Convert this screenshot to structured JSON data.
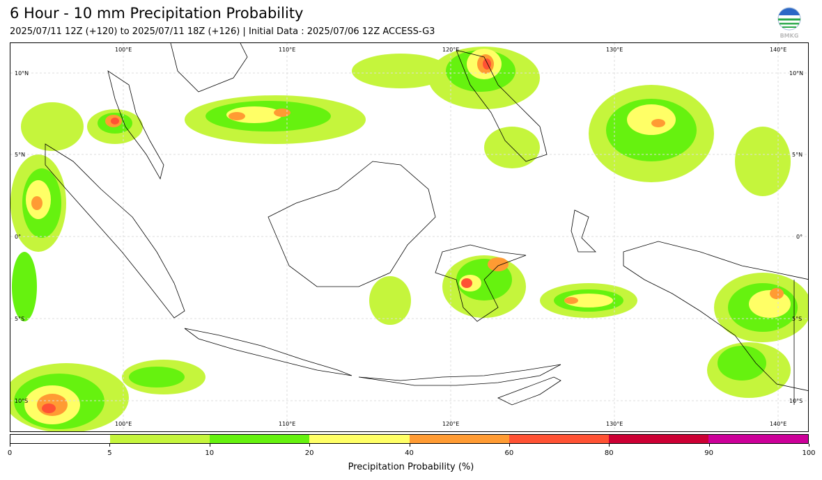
{
  "header": {
    "title": "6 Hour - 10 mm Precipitation Probability",
    "subtitle": "2025/07/11 12Z (+120) to 2025/07/11 18Z (+126) | Initial Data : 2025/07/06 12Z ACCESS-G3"
  },
  "logo": {
    "icon": "bmkg-logo",
    "text": "BMKG"
  },
  "map": {
    "lon_labels_top": [
      "100°E",
      "110°E",
      "120°E",
      "130°E",
      "140°E"
    ],
    "lon_labels_bottom": [
      "100°E",
      "110°E",
      "120°E",
      "130°E",
      "140°E"
    ],
    "lat_labels_left": [
      "10°N",
      "5°N",
      "0°",
      "5°S",
      "10°S"
    ],
    "lat_labels_right": [
      "10°N",
      "5°N",
      "0°",
      "5°S",
      "10°S"
    ]
  },
  "colorbar": {
    "colors": [
      "#ffffff",
      "#c5f53c",
      "#66f20f",
      "#ffff66",
      "#ff9b33",
      "#ff5234",
      "#cc0034",
      "#cc0099"
    ],
    "ticks": [
      "0",
      "5",
      "10",
      "20",
      "40",
      "60",
      "80",
      "90",
      "100"
    ],
    "label": "Precipitation Probability (%)"
  }
}
